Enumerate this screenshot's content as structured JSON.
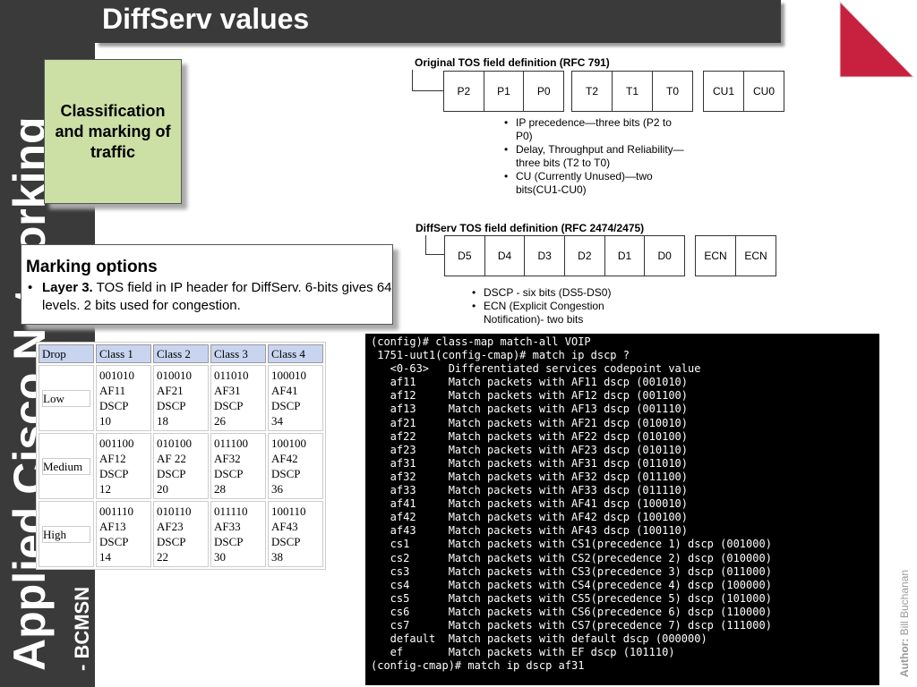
{
  "sidebar": {
    "title": "Applied Cisco Networking",
    "subtitle": "- BCMSN"
  },
  "slide": {
    "title": "DiffServ values"
  },
  "classification_box": {
    "text": "Classification and marking of traffic"
  },
  "marking": {
    "heading": "Marking options",
    "bullet_bold": "Layer 3.",
    "bullet_text": " TOS field in IP header for DiffServ. 6-bits gives 64 levels. 2 bits used for congestion."
  },
  "original_tos": {
    "title": "Original TOS field definition (RFC 791)",
    "group1": [
      "P2",
      "P1",
      "P0"
    ],
    "group2": [
      "T2",
      "T1",
      "T0"
    ],
    "group3": [
      "CU1",
      "CU0"
    ],
    "bullets": [
      "IP precedence—three bits (P2 to P0)",
      "Delay, Throughput and Reliability—three bits (T2 to T0)",
      "CU (Currently Unused)—two bits(CU1-CU0)"
    ]
  },
  "diffserv_tos": {
    "title": "DiffServ TOS field definition (RFC 2474/2475)",
    "group1": [
      "D5",
      "D4",
      "D3",
      "D2",
      "D1",
      "D0"
    ],
    "group2": [
      "ECN",
      "ECN"
    ],
    "bullets": [
      "DSCP - six bits (DS5-DS0)",
      "ECN (Explicit Congestion Notification)- two bits"
    ]
  },
  "drop_table": {
    "headers": [
      "Drop",
      "Class 1",
      "Class 2",
      "Class 3",
      "Class 4"
    ],
    "rows": [
      {
        "label": "Low",
        "cells": [
          [
            "001010",
            "AF11",
            "DSCP",
            "10"
          ],
          [
            "010010",
            "AF21",
            "DSCP",
            "18"
          ],
          [
            "011010",
            "AF31",
            "DSCP",
            "26"
          ],
          [
            "100010",
            "AF41",
            "DSCP",
            "34"
          ]
        ]
      },
      {
        "label": "Medium",
        "cells": [
          [
            "001100",
            "AF12",
            "DSCP",
            "12"
          ],
          [
            "010100",
            "AF 22",
            "DSCP",
            "20"
          ],
          [
            "011100",
            "AF32",
            "DSCP",
            "28"
          ],
          [
            "100100",
            "AF42",
            "DSCP",
            "36"
          ]
        ]
      },
      {
        "label": "High",
        "cells": [
          [
            "001110",
            "AF13",
            "DSCP",
            "14"
          ],
          [
            "010110",
            "AF23",
            "DSCP",
            "22"
          ],
          [
            "011110",
            "AF33",
            "DSCP",
            "30"
          ],
          [
            "100110",
            "AF43",
            "DSCP",
            "38"
          ]
        ]
      }
    ]
  },
  "terminal": {
    "lines": [
      "(config)# class-map match-all VOIP",
      " 1751-uut1(config-cmap)# match ip dscp ?",
      "   <0-63>   Differentiated services codepoint value",
      "   af11     Match packets with AF11 dscp (001010)",
      "   af12     Match packets with AF12 dscp (001100)",
      "   af13     Match packets with AF13 dscp (001110)",
      "   af21     Match packets with AF21 dscp (010010)",
      "   af22     Match packets with AF22 dscp (010100)",
      "   af23     Match packets with AF23 dscp (010110)",
      "   af31     Match packets with AF31 dscp (011010)",
      "   af32     Match packets with AF32 dscp (011100)",
      "   af33     Match packets with AF33 dscp (011110)",
      "   af41     Match packets with AF41 dscp (100010)",
      "   af42     Match packets with AF42 dscp (100100)",
      "   af43     Match packets with AF43 dscp (100110)",
      "   cs1      Match packets with CS1(precedence 1) dscp (001000)",
      "   cs2      Match packets with CS2(precedence 2) dscp (010000)",
      "   cs3      Match packets with CS3(precedence 3) dscp (011000)",
      "   cs4      Match packets with CS4(precedence 4) dscp (100000)",
      "   cs5      Match packets with CS5(precedence 5) dscp (101000)",
      "   cs6      Match packets with CS6(precedence 6) dscp (110000)",
      "   cs7      Match packets with CS7(precedence 7) dscp (111000)",
      "   default  Match packets with default dscp (000000)",
      "   ef       Match packets with EF dscp (101110)",
      "(config-cmap)# match ip dscp af31"
    ]
  },
  "author": {
    "label": "Author:",
    "name": "Bill Buchanan"
  },
  "colors": {
    "dark": "#3a3a3a",
    "accent": "#c8203f",
    "green": "#cce0a6",
    "table_header": "#c9d5f0"
  }
}
